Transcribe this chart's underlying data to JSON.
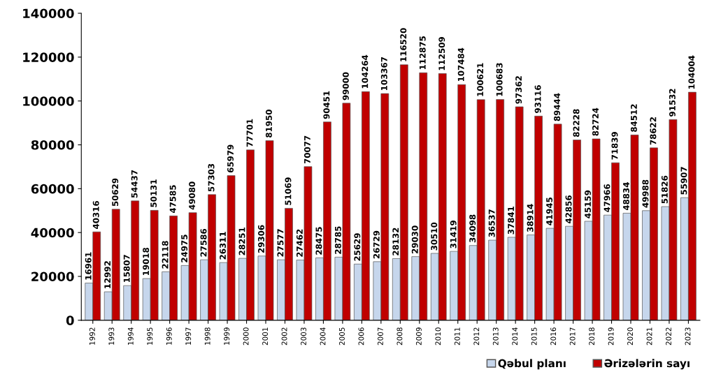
{
  "chart_data": {
    "type": "bar",
    "categories": [
      "1992",
      "1993",
      "1994",
      "1995",
      "1996",
      "1997",
      "1998",
      "1999",
      "2000",
      "2001",
      "2002",
      "2003",
      "2004",
      "2005",
      "2006",
      "2007",
      "2008",
      "2009",
      "2010",
      "2011",
      "2012",
      "2013",
      "2014",
      "2015",
      "2016",
      "2017",
      "2018",
      "2019",
      "2020",
      "2021",
      "2022",
      "2023"
    ],
    "series": [
      {
        "name": "Qəbul planı",
        "color": "#c6d6ec",
        "values": [
          16961,
          12992,
          15807,
          19018,
          22118,
          24975,
          27586,
          26311,
          28251,
          29306,
          27577,
          27462,
          28475,
          28785,
          25629,
          26729,
          28132,
          29030,
          30510,
          31419,
          34098,
          36537,
          37841,
          38914,
          41945,
          42856,
          45159,
          47966,
          48834,
          49988,
          51826,
          55907
        ]
      },
      {
        "name": "Ərizələrin sayı",
        "color": "#c00000",
        "values": [
          40316,
          50629,
          54437,
          50131,
          47585,
          49080,
          57303,
          65979,
          77701,
          81950,
          51069,
          70077,
          90451,
          99000,
          104264,
          103367,
          116520,
          112875,
          112509,
          107484,
          100621,
          100683,
          97362,
          93116,
          89444,
          82228,
          82724,
          71839,
          84512,
          78622,
          91532,
          104004
        ]
      }
    ],
    "ylim": [
      0,
      140000
    ],
    "yticks": [
      0,
      20000,
      40000,
      60000,
      80000,
      100000,
      120000,
      140000
    ],
    "grid": false,
    "legend": "bottom right",
    "data_labels": true
  }
}
